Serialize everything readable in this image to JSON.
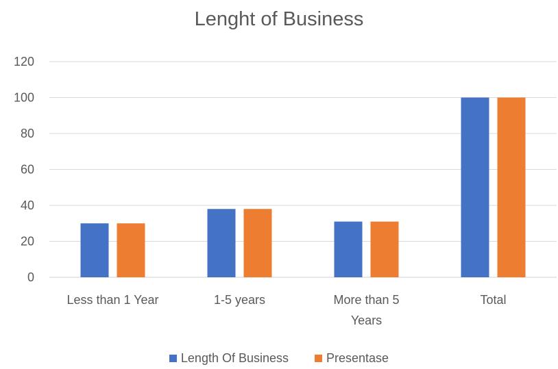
{
  "chart_data": {
    "type": "bar",
    "title": "Lenght of Business",
    "categories": [
      [
        "Less than 1 Year"
      ],
      [
        "1-5 years"
      ],
      [
        "More than 5",
        "Years"
      ],
      [
        "Total"
      ]
    ],
    "series": [
      {
        "name": "Length Of Business",
        "color": "#4472C4",
        "values": [
          30,
          38,
          31,
          100
        ]
      },
      {
        "name": "Presentase",
        "color": "#ED7D31",
        "values": [
          30,
          38,
          31,
          100
        ]
      }
    ],
    "ylim": [
      0,
      120
    ],
    "yticks": [
      0,
      20,
      40,
      60,
      80,
      100,
      120
    ],
    "grid": true,
    "legend_position": "bottom"
  }
}
